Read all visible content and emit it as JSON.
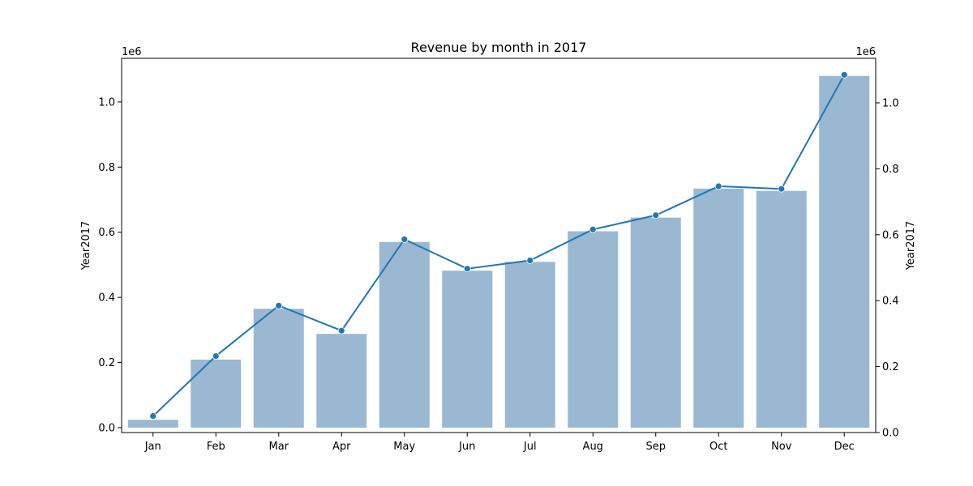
{
  "chart_data": {
    "type": "bar",
    "title": "Revenue by month in 2017",
    "categories": [
      "Jan",
      "Feb",
      "Mar",
      "Apr",
      "May",
      "Jun",
      "Jul",
      "Aug",
      "Sep",
      "Oct",
      "Nov",
      "Dec"
    ],
    "series": [
      {
        "type": "bar",
        "axis": "left",
        "color": "#9ab8d1",
        "values": [
          24000,
          209000,
          365000,
          288000,
          570000,
          482000,
          509000,
          603000,
          645000,
          734000,
          727000,
          1080000
        ]
      },
      {
        "type": "line",
        "axis": "right",
        "color": "#1f77b4",
        "marker": "circle",
        "values": [
          50000,
          232000,
          385000,
          309000,
          586000,
          497000,
          522000,
          616000,
          659000,
          747000,
          739000,
          1085000
        ]
      }
    ],
    "left_axis": {
      "label": "Year2017",
      "ylim": [
        -15000,
        1134000
      ],
      "ticks": [
        0,
        200000,
        400000,
        600000,
        800000,
        1000000
      ],
      "tick_labels": [
        "0.0",
        "0.2",
        "0.4",
        "0.6",
        "0.8",
        "1.0"
      ],
      "offset_text": "1e6"
    },
    "right_axis": {
      "label": "Year2017",
      "ylim": [
        0,
        1135000
      ],
      "ticks": [
        0,
        200000,
        400000,
        600000,
        800000,
        1000000
      ],
      "tick_labels": [
        "0.0",
        "0.2",
        "0.4",
        "0.6",
        "0.8",
        "1.0"
      ],
      "offset_text": "1e6"
    },
    "grid": false,
    "legend": "none"
  }
}
